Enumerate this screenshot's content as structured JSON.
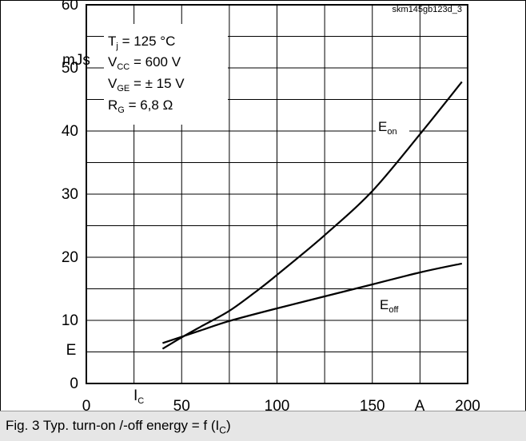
{
  "figure_id": "skm145gb123d_3",
  "caption": {
    "prefix": "Fig. 3 Typ. turn-on /-off energy = f (I",
    "subscript": "C",
    "suffix": ")"
  },
  "conditions": [
    {
      "symbol": "T",
      "sub": "j",
      "value": " = 125 °C"
    },
    {
      "symbol": "V",
      "sub": "CC",
      "value": " = 600 V"
    },
    {
      "symbol": "V",
      "sub": "GE",
      "value": " = ± 15 V"
    },
    {
      "symbol": "R",
      "sub": "G",
      "value": " = 6,8 Ω"
    }
  ],
  "colors": {
    "grid": "#000000",
    "curve": "#000000",
    "caption_bg": "#e6e6e6"
  },
  "chart_data": {
    "type": "line",
    "xlim": [
      0,
      200
    ],
    "ylim": [
      0,
      60
    ],
    "x_ticks": [
      0,
      50,
      100,
      150,
      200
    ],
    "x_tick_labels": [
      "0",
      "50",
      "100",
      "150",
      "200"
    ],
    "y_ticks": [
      0,
      10,
      20,
      30,
      40,
      50,
      60
    ],
    "y_tick_labels": [
      "0",
      "10",
      "20",
      "30",
      "40",
      "50",
      "60"
    ],
    "x_symbol": {
      "main": "I",
      "sub": "C"
    },
    "x_unit": "A",
    "y_symbol": "E",
    "y_unit": "mJs",
    "grid": true,
    "series": [
      {
        "name": {
          "main": "E",
          "sub": "on"
        },
        "x": [
          40,
          50,
          60,
          75,
          90,
          100,
          125,
          150,
          175,
          197
        ],
        "y": [
          5.5,
          7.3,
          9.0,
          11.5,
          14.8,
          17.2,
          23.5,
          30.5,
          39.5,
          47.8
        ]
      },
      {
        "name": {
          "main": "E",
          "sub": "off"
        },
        "x": [
          40,
          50,
          60,
          75,
          100,
          125,
          150,
          175,
          197
        ],
        "y": [
          6.4,
          7.4,
          8.4,
          9.9,
          11.9,
          13.8,
          15.7,
          17.6,
          19.0
        ]
      }
    ]
  }
}
